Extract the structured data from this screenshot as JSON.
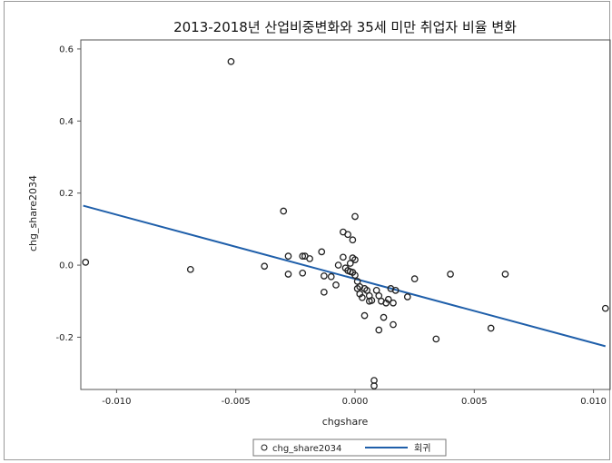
{
  "chart_data": {
    "type": "scatter",
    "title": "2013-2018년 산업비중변화와 35세 미만 취업자 비율 변화",
    "xlabel": "chgshare",
    "ylabel": "chg_share2034",
    "xlim": [
      -0.0115,
      0.0107
    ],
    "ylim": [
      -0.345,
      0.625
    ],
    "xticks": [
      -0.01,
      -0.005,
      0.0,
      0.005,
      0.01
    ],
    "xtick_labels": [
      "-0.010",
      "-0.005",
      "0.000",
      "0.005",
      "0.010"
    ],
    "yticks": [
      -0.2,
      0.0,
      0.2,
      0.4,
      0.6
    ],
    "ytick_labels": [
      "-0.2",
      "0.0",
      "0.2",
      "0.4",
      "0.6"
    ],
    "grid": false,
    "legend_position": "bottom",
    "series": [
      {
        "name": "chg_share2034",
        "kind": "scatter",
        "color": "#222222",
        "marker": "open-circle",
        "points": [
          [
            -0.0113,
            0.008
          ],
          [
            -0.0069,
            -0.012
          ],
          [
            -0.0052,
            0.565
          ],
          [
            -0.0038,
            -0.003
          ],
          [
            -0.003,
            0.15
          ],
          [
            -0.0028,
            0.025
          ],
          [
            -0.0028,
            -0.025
          ],
          [
            -0.0022,
            0.025
          ],
          [
            -0.0022,
            -0.022
          ],
          [
            -0.0021,
            0.025
          ],
          [
            -0.0019,
            0.018
          ],
          [
            -0.0014,
            0.037
          ],
          [
            -0.0013,
            -0.03
          ],
          [
            -0.0013,
            -0.075
          ],
          [
            -0.001,
            -0.032
          ],
          [
            -0.0008,
            -0.055
          ],
          [
            -0.0007,
            0.0
          ],
          [
            -0.0005,
            0.092
          ],
          [
            -0.0005,
            0.022
          ],
          [
            -0.0004,
            -0.008
          ],
          [
            -0.0003,
            0.085
          ],
          [
            -0.0003,
            -0.015
          ],
          [
            -0.0002,
            0.005
          ],
          [
            -0.0002,
            -0.018
          ],
          [
            -0.0001,
            0.02
          ],
          [
            -0.0001,
            -0.02
          ],
          [
            -0.0001,
            0.07
          ],
          [
            0.0,
            0.135
          ],
          [
            0.0,
            0.015
          ],
          [
            0.0,
            -0.028
          ],
          [
            0.0001,
            -0.045
          ],
          [
            0.0001,
            -0.065
          ],
          [
            0.0002,
            -0.06
          ],
          [
            0.0002,
            -0.08
          ],
          [
            0.0003,
            -0.09
          ],
          [
            0.0004,
            -0.065
          ],
          [
            0.0004,
            -0.14
          ],
          [
            0.0005,
            -0.07
          ],
          [
            0.0006,
            -0.085
          ],
          [
            0.0006,
            -0.1
          ],
          [
            0.0007,
            -0.098
          ],
          [
            0.0008,
            -0.32
          ],
          [
            0.0008,
            -0.335
          ],
          [
            0.0009,
            -0.07
          ],
          [
            0.001,
            -0.085
          ],
          [
            0.001,
            -0.18
          ],
          [
            0.0011,
            -0.1
          ],
          [
            0.0012,
            -0.145
          ],
          [
            0.0013,
            -0.105
          ],
          [
            0.0014,
            -0.095
          ],
          [
            0.0015,
            -0.065
          ],
          [
            0.0016,
            -0.105
          ],
          [
            0.0016,
            -0.165
          ],
          [
            0.0017,
            -0.07
          ],
          [
            0.0022,
            -0.088
          ],
          [
            0.0025,
            -0.038
          ],
          [
            0.0034,
            -0.205
          ],
          [
            0.004,
            -0.025
          ],
          [
            0.0057,
            -0.175
          ],
          [
            0.0063,
            -0.025
          ],
          [
            0.0105,
            -0.12
          ]
        ]
      },
      {
        "name": "회귀",
        "kind": "line",
        "color": "#1f5faa",
        "points": [
          [
            -0.0114,
            0.165
          ],
          [
            0.0105,
            -0.225
          ]
        ]
      }
    ]
  }
}
